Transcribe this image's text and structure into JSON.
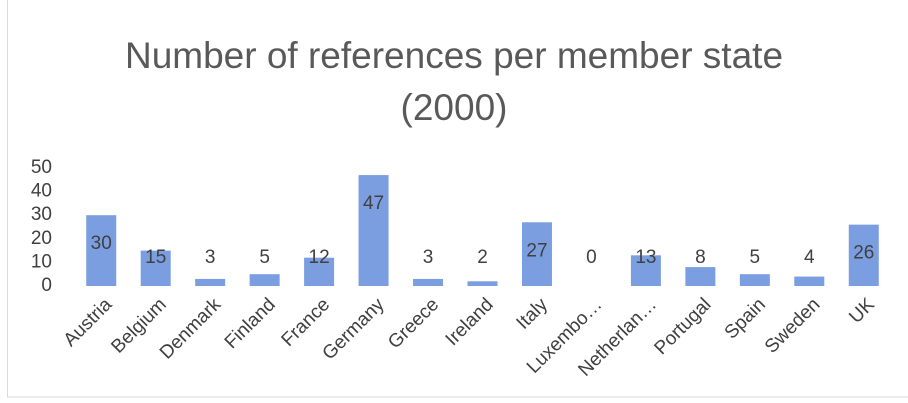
{
  "chart_data": {
    "type": "bar",
    "title": "Number of references per member state (2000)",
    "categories": [
      "Austria",
      "Belgium",
      "Denmark",
      "Finland",
      "France",
      "Germany",
      "Greece",
      "Ireland",
      "Italy",
      "Luxembo…",
      "Netherlan…",
      "Portugal",
      "Spain",
      "Sweden",
      "UK"
    ],
    "values": [
      30,
      15,
      3,
      5,
      12,
      47,
      3,
      2,
      27,
      0,
      13,
      8,
      5,
      4,
      26
    ],
    "color": "#7a9ee0",
    "ylim": [
      0,
      50
    ],
    "yticks": [
      0,
      10,
      20,
      30,
      40,
      50
    ],
    "grid": false
  }
}
